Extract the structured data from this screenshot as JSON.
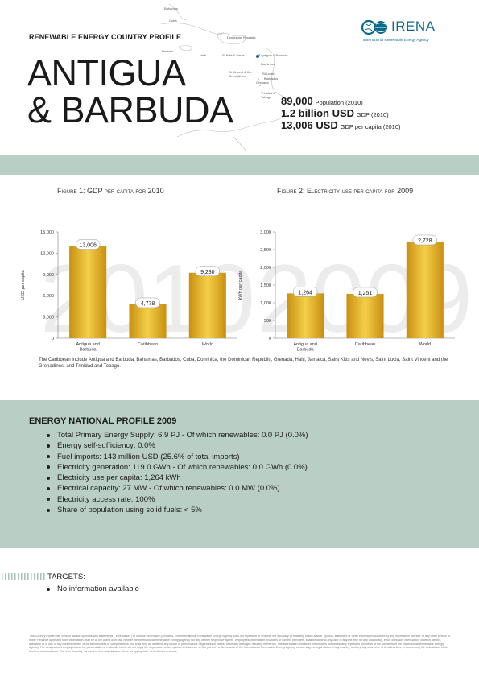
{
  "header": {
    "profile_label": "RENEWABLE ENERGY COUNTRY PROFILE",
    "country_line1": "ANTIGUA",
    "country_line2": "& BARBUDA",
    "logo_text": "IRENA",
    "logo_subtitle": "International Renewable Energy Agency",
    "accent_color": "#0a6a8e"
  },
  "map": {
    "labels": [
      "Bahamas",
      "Cuba",
      "Dominican Republic",
      "Jamaica",
      "Haiti",
      "St Kitts & Nevis",
      "Antigua & Barbuda",
      "Dominica",
      "St Vincent & the Grenadines",
      "St Lucia",
      "Barbados",
      "Grenada",
      "Trinidad & Tobago"
    ]
  },
  "stats": [
    {
      "value": "89,000",
      "label": "Population (2010)"
    },
    {
      "value": "1.2 billion USD",
      "label": "GDP (2010)"
    },
    {
      "value": "13,006 USD",
      "label": "GDP per capita (2010)"
    }
  ],
  "band_color": "#b9cfc5",
  "figures": {
    "fig1_title": "Figure 1: GDP per capita for 2010",
    "fig2_title": "Figure 2: Electricity use per capita for 2009",
    "caption": "The Caribbean include Antigua and Barbuda, Bahamas, Barbados, Cuba, Dominica, the Dominican Republic, Grenada, Haiti, Jamaica, Saint Kitts and Nevis, Saint Lucia, Saint Vincent and the Grenadines, and Trinidad and Tobago."
  },
  "chart_data": [
    {
      "type": "bar",
      "title": "Figure 1: GDP per capita for 2010",
      "categories": [
        "Antigua and Barbuda",
        "Caribbean",
        "World"
      ],
      "values": [
        13006,
        4778,
        9230
      ],
      "value_labels": [
        "13,006",
        "4,778",
        "9,230"
      ],
      "ylabel": "USD per capita",
      "ylim": [
        0,
        15000
      ],
      "yticks": [
        0,
        3000,
        6000,
        9000,
        12000,
        15000
      ],
      "ytick_labels": [
        "0",
        "3,000",
        "6,000",
        "9,000",
        "12,000",
        "15,000"
      ],
      "watermark": "2010",
      "bar_color": "#e0ad1c",
      "grid": false
    },
    {
      "type": "bar",
      "title": "Figure 2: Electricity use per capita for 2009",
      "categories": [
        "Antigua and Barbuda",
        "Caribbean",
        "World"
      ],
      "values": [
        1264,
        1251,
        2728
      ],
      "value_labels": [
        "1,264",
        "1,251",
        "2,728"
      ],
      "ylabel": "kWh per capita",
      "ylim": [
        0,
        3000
      ],
      "yticks": [
        0,
        500,
        1000,
        1500,
        2000,
        2500,
        3000
      ],
      "ytick_labels": [
        "0",
        "500",
        "1,000",
        "1,500",
        "2,000",
        "2,500",
        "3,000"
      ],
      "watermark": "2009",
      "bar_color": "#e0ad1c",
      "grid": false
    }
  ],
  "energy_profile": {
    "title": "ENERGY NATIONAL PROFILE 2009",
    "items": [
      "Total Primary Energy Supply: 6.9 PJ - Of which renewables: 0.0 PJ (0.0%)",
      "Energy self-sufficiency: 0.0%",
      "Fuel imports: 143 million USD (25.6% of total imports)",
      "Electricity generation: 119.0 GWh - Of which renewables: 0.0 GWh (0.0%)",
      "Electricity use per capita: 1,264 kWh",
      "Electrical capacity: 27 MW - Of which renewables: 0.0 MW (0.0%)",
      "Electricity access rate: 100%",
      "Share of population using solid fuels: < 5%"
    ]
  },
  "targets": {
    "label": "TARGETS:",
    "items": [
      "No information available"
    ]
  },
  "disclaimer": "This Country Profile may contain advice, opinions and statements (\"information\") of various information providers. The International Renewable Energy Agency does not represent or endorse the accuracy or reliability of any advice, opinion, statement or other information provided by any information provider or any other person or entity. Reliance upon any such information shall be at the user's own risk. Neither the International Renewable Energy Agency nor any of their respective agents, employees, information providers or content providers, shall be liable to any user or anyone else for any inaccuracy, error, omission, interruption, deletion, defect, alteration of or use of any content herein, or for its timeliness or completeness, nor shall they be liable for any failure of performance, regardless of cause, or for any damages resulting therefrom. The information contained herein does not necessarily represent the views of the Members of the International Renewable Energy Agency. The designations employed and the presentation of materials herein do not imply the expression of any opinion whatsoever on the part of the Secretariat of the International Renewable Energy Agency concerning the legal status of any country, territory, city or area or of its authorities, or concerning the delimitation of its frontiers or boundaries. The term \"country\" as used in this material also refers, as appropriate, to territories or areas."
}
